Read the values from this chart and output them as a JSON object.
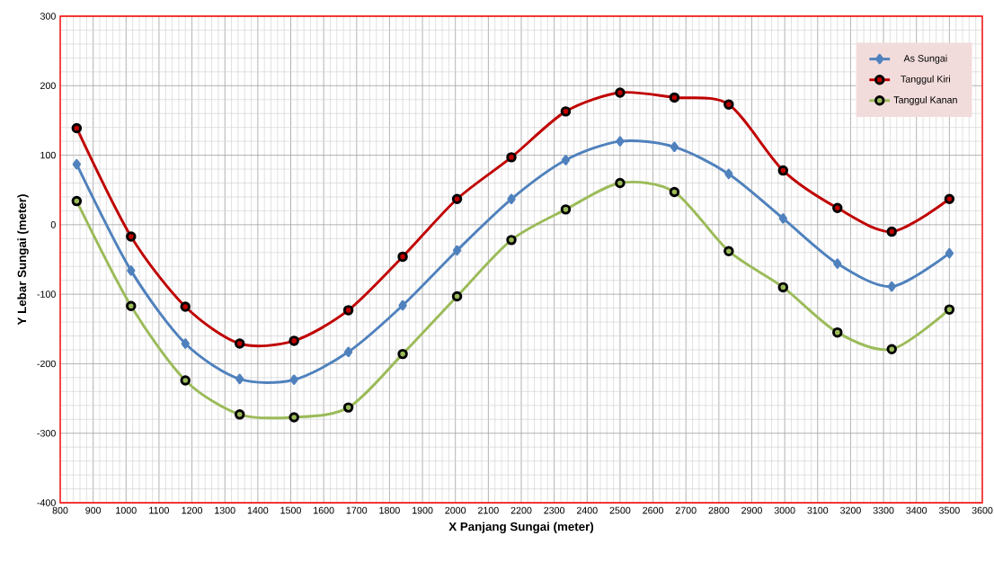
{
  "chart_data": {
    "type": "line",
    "xlabel": "X Panjang Sungai (meter)",
    "ylabel": "Y Lebar Sungai (meter)",
    "x": [
      850,
      1015,
      1180,
      1345,
      1510,
      1675,
      1840,
      2005,
      2170,
      2335,
      2500,
      2665,
      2830,
      2995,
      3160,
      3325,
      3500
    ],
    "series": [
      {
        "name": "As Sungai",
        "color": "#4f81bd",
        "marker": "diamond",
        "values": [
          87,
          -66,
          -171,
          -222,
          -223,
          -183,
          -116,
          -37,
          37,
          93,
          120,
          112,
          73,
          9,
          -56,
          -89,
          -41
        ]
      },
      {
        "name": "Tanggul Kiri",
        "color": "#c00000",
        "marker": "circle",
        "values": [
          139,
          -17,
          -118,
          -171,
          -167,
          -123,
          -46,
          37,
          97,
          163,
          190,
          183,
          173,
          78,
          24,
          -10,
          37
        ]
      },
      {
        "name": "Tanggul Kanan",
        "color": "#9bbb59",
        "marker": "circle",
        "values": [
          34,
          -117,
          -224,
          -273,
          -277,
          -263,
          -186,
          -103,
          -22,
          22,
          60,
          47,
          -38,
          -90,
          -155,
          -179,
          -122
        ]
      }
    ],
    "xlim": [
      800,
      3600
    ],
    "ylim": [
      -400,
      300
    ],
    "xticks": [
      800,
      900,
      1000,
      1100,
      1200,
      1300,
      1400,
      1500,
      1600,
      1700,
      1800,
      1900,
      2000,
      2100,
      2200,
      2300,
      2400,
      2500,
      2600,
      2700,
      2800,
      2900,
      3000,
      3100,
      3200,
      3300,
      3400,
      3500,
      3600
    ],
    "yticks": [
      -400,
      -300,
      -200,
      -100,
      0,
      100,
      200,
      300
    ],
    "grid": true,
    "legend": "top right",
    "line_style": "solid"
  }
}
